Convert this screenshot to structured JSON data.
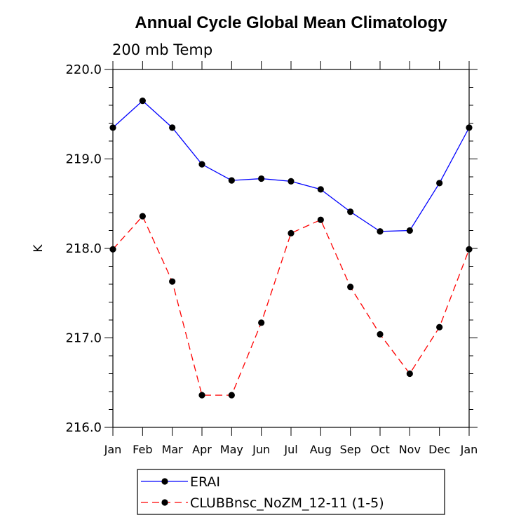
{
  "chart_data": {
    "type": "line",
    "title": "Annual Cycle Global Mean Climatology",
    "subtitle": "200 mb Temp",
    "xlabel": "",
    "ylabel": "K",
    "categories": [
      "Jan",
      "Feb",
      "Mar",
      "Apr",
      "May",
      "Jun",
      "Jul",
      "Aug",
      "Sep",
      "Oct",
      "Nov",
      "Dec",
      "Jan"
    ],
    "ylim": [
      216.0,
      220.0
    ],
    "yticks": [
      "216.0",
      "217.0",
      "218.0",
      "219.0",
      "220.0"
    ],
    "legend_position": "bottom",
    "series": [
      {
        "name": "ERAI",
        "color": "#0000ff",
        "dash": "solid",
        "values": [
          219.35,
          219.65,
          219.35,
          218.94,
          218.76,
          218.78,
          218.75,
          218.66,
          218.41,
          218.19,
          218.2,
          218.73,
          219.35
        ]
      },
      {
        "name": "CLUBBnsc_NoZM_12-11 (1-5)",
        "color": "#ff0000",
        "dash": "dashed",
        "values": [
          217.99,
          218.36,
          217.63,
          216.36,
          216.36,
          217.17,
          218.17,
          218.32,
          217.57,
          217.04,
          216.6,
          217.12,
          217.99
        ]
      }
    ]
  }
}
